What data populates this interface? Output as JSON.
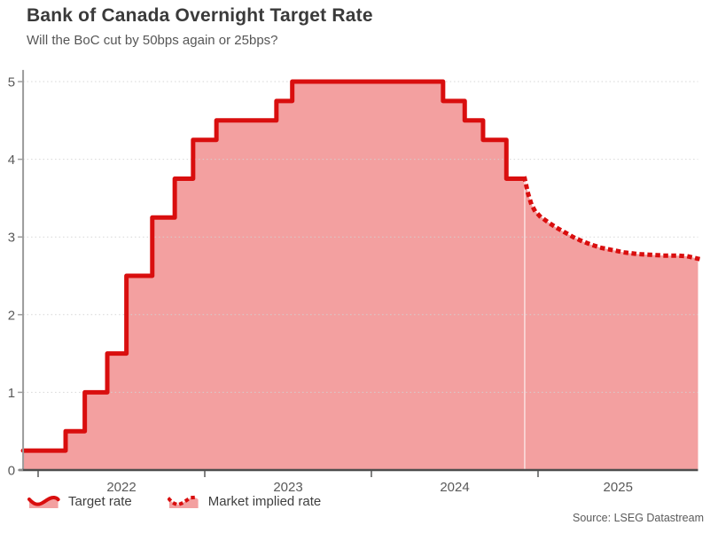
{
  "header": {
    "title": "Bank of Canada Overnight Target Rate",
    "subtitle": "Will the BoC cut by 50bps again or 25bps?"
  },
  "footer": {
    "source": "Source: LSEG Datastream"
  },
  "chart_data": {
    "type": "line",
    "title": "Bank of Canada Overnight Target Rate",
    "subtitle": "Will the BoC cut by 50bps again or 25bps?",
    "xlabel": "",
    "ylabel": "",
    "unit": "percent",
    "xlim": [
      2021.91,
      2025.96
    ],
    "ylim": [
      0,
      5.15
    ],
    "x_tick_years": [
      2022,
      2023,
      2024,
      2025
    ],
    "x_tick_labels": [
      "2022",
      "2023",
      "2024",
      "2025"
    ],
    "y_ticks": [
      0,
      1,
      2,
      3,
      4,
      5
    ],
    "y_tick_labels": [
      "0",
      "1",
      "2",
      "3",
      "4",
      "5"
    ],
    "grid": "horizontal-dotted",
    "legend_position": "bottom-left",
    "series": [
      {
        "name": "Target rate",
        "style": "solid-step",
        "points": [
          [
            2021.91,
            0.25
          ],
          [
            2022.165,
            0.5
          ],
          [
            2022.28,
            1.0
          ],
          [
            2022.415,
            1.5
          ],
          [
            2022.53,
            2.5
          ],
          [
            2022.685,
            3.25
          ],
          [
            2022.82,
            3.75
          ],
          [
            2022.93,
            4.25
          ],
          [
            2023.07,
            4.5
          ],
          [
            2023.43,
            4.75
          ],
          [
            2023.525,
            5.0
          ],
          [
            2024.43,
            4.75
          ],
          [
            2024.56,
            4.5
          ],
          [
            2024.67,
            4.25
          ],
          [
            2024.81,
            3.75
          ],
          [
            2024.92,
            3.75
          ]
        ]
      },
      {
        "name": "Market implied rate",
        "style": "dotted",
        "points": [
          [
            2024.92,
            3.75
          ],
          [
            2024.94,
            3.56
          ],
          [
            2024.96,
            3.42
          ],
          [
            2024.98,
            3.34
          ],
          [
            2025.01,
            3.27
          ],
          [
            2025.06,
            3.19
          ],
          [
            2025.11,
            3.12
          ],
          [
            2025.16,
            3.06
          ],
          [
            2025.21,
            3.0
          ],
          [
            2025.26,
            2.95
          ],
          [
            2025.32,
            2.9
          ],
          [
            2025.38,
            2.86
          ],
          [
            2025.45,
            2.83
          ],
          [
            2025.52,
            2.8
          ],
          [
            2025.6,
            2.78
          ],
          [
            2025.68,
            2.77
          ],
          [
            2025.76,
            2.76
          ],
          [
            2025.84,
            2.76
          ],
          [
            2025.9,
            2.75
          ],
          [
            2025.96,
            2.72
          ]
        ]
      }
    ],
    "colors": {
      "line": "#d90e0e",
      "area_fill": "#f3a0a0",
      "grid": "#d2d2d2",
      "y_axis": "#9b9b9b",
      "x_axis": "#4d4d4d",
      "tick_text": "#595959"
    }
  }
}
